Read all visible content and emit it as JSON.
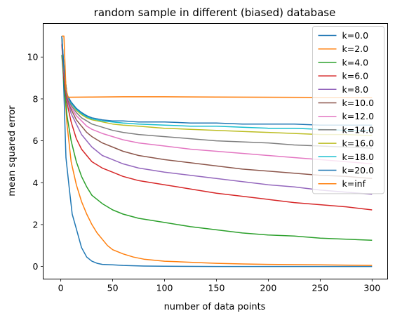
{
  "chart_data": {
    "type": "line",
    "title": "random sample in different (biased) database",
    "xlabel": "number of data points",
    "ylabel": "mean squared error",
    "xlim": [
      -17,
      315
    ],
    "ylim": [
      -0.6,
      11.6
    ],
    "xticks": [
      0,
      50,
      100,
      150,
      200,
      250,
      300
    ],
    "yticks": [
      0,
      2,
      4,
      6,
      8,
      10
    ],
    "grid": false,
    "legend_position": "top-right",
    "series": [
      {
        "name": "k=0.0",
        "color": "#1f77b4",
        "points": [
          [
            1,
            11.0
          ],
          [
            3,
            8.3
          ],
          [
            5,
            5.2
          ],
          [
            8,
            3.8
          ],
          [
            11,
            2.5
          ],
          [
            15,
            1.8
          ],
          [
            20,
            0.9
          ],
          [
            25,
            0.45
          ],
          [
            30,
            0.25
          ],
          [
            35,
            0.15
          ],
          [
            40,
            0.1
          ],
          [
            50,
            0.08
          ],
          [
            60,
            0.05
          ],
          [
            80,
            0.02
          ],
          [
            100,
            0.01
          ],
          [
            150,
            0.0
          ],
          [
            200,
            0.0
          ],
          [
            250,
            0.0
          ],
          [
            300,
            0.0
          ]
        ]
      },
      {
        "name": "k=2.0",
        "color": "#ff7f0e",
        "points": [
          [
            1,
            11.0
          ],
          [
            3,
            9.0
          ],
          [
            6,
            6.8
          ],
          [
            10,
            5.0
          ],
          [
            15,
            3.9
          ],
          [
            20,
            3.1
          ],
          [
            25,
            2.5
          ],
          [
            30,
            2.0
          ],
          [
            35,
            1.6
          ],
          [
            40,
            1.3
          ],
          [
            45,
            1.0
          ],
          [
            50,
            0.8
          ],
          [
            60,
            0.6
          ],
          [
            70,
            0.45
          ],
          [
            80,
            0.35
          ],
          [
            100,
            0.25
          ],
          [
            125,
            0.2
          ],
          [
            150,
            0.15
          ],
          [
            175,
            0.12
          ],
          [
            200,
            0.1
          ],
          [
            250,
            0.08
          ],
          [
            300,
            0.05
          ]
        ]
      },
      {
        "name": "k=4.0",
        "color": "#2ca02c",
        "points": [
          [
            1,
            10.1
          ],
          [
            3,
            8.8
          ],
          [
            6,
            7.2
          ],
          [
            10,
            6.0
          ],
          [
            15,
            5.0
          ],
          [
            20,
            4.3
          ],
          [
            25,
            3.8
          ],
          [
            30,
            3.4
          ],
          [
            40,
            3.0
          ],
          [
            50,
            2.7
          ],
          [
            60,
            2.5
          ],
          [
            75,
            2.3
          ],
          [
            100,
            2.1
          ],
          [
            125,
            1.9
          ],
          [
            150,
            1.75
          ],
          [
            175,
            1.6
          ],
          [
            200,
            1.5
          ],
          [
            225,
            1.45
          ],
          [
            250,
            1.35
          ],
          [
            275,
            1.3
          ],
          [
            300,
            1.25
          ]
        ]
      },
      {
        "name": "k=6.0",
        "color": "#d62728",
        "points": [
          [
            1,
            10.6
          ],
          [
            3,
            9.0
          ],
          [
            6,
            7.8
          ],
          [
            10,
            6.9
          ],
          [
            15,
            6.1
          ],
          [
            20,
            5.6
          ],
          [
            25,
            5.3
          ],
          [
            30,
            5.0
          ],
          [
            40,
            4.7
          ],
          [
            50,
            4.5
          ],
          [
            60,
            4.3
          ],
          [
            75,
            4.1
          ],
          [
            100,
            3.9
          ],
          [
            125,
            3.7
          ],
          [
            150,
            3.5
          ],
          [
            175,
            3.35
          ],
          [
            200,
            3.2
          ],
          [
            225,
            3.05
          ],
          [
            250,
            2.95
          ],
          [
            275,
            2.85
          ],
          [
            300,
            2.7
          ]
        ]
      },
      {
        "name": "k=8.0",
        "color": "#9467bd",
        "points": [
          [
            1,
            10.8
          ],
          [
            3,
            9.2
          ],
          [
            6,
            8.0
          ],
          [
            10,
            7.3
          ],
          [
            15,
            6.8
          ],
          [
            20,
            6.3
          ],
          [
            25,
            6.0
          ],
          [
            30,
            5.7
          ],
          [
            40,
            5.3
          ],
          [
            50,
            5.1
          ],
          [
            60,
            4.9
          ],
          [
            75,
            4.7
          ],
          [
            100,
            4.5
          ],
          [
            125,
            4.35
          ],
          [
            150,
            4.2
          ],
          [
            175,
            4.05
          ],
          [
            200,
            3.9
          ],
          [
            225,
            3.8
          ],
          [
            250,
            3.65
          ],
          [
            275,
            3.55
          ],
          [
            300,
            3.45
          ]
        ]
      },
      {
        "name": "k=10.0",
        "color": "#8c564b",
        "points": [
          [
            1,
            10.9
          ],
          [
            3,
            9.3
          ],
          [
            6,
            8.1
          ],
          [
            10,
            7.5
          ],
          [
            15,
            7.0
          ],
          [
            20,
            6.7
          ],
          [
            25,
            6.4
          ],
          [
            30,
            6.2
          ],
          [
            40,
            5.9
          ],
          [
            50,
            5.7
          ],
          [
            60,
            5.5
          ],
          [
            75,
            5.3
          ],
          [
            100,
            5.1
          ],
          [
            125,
            4.95
          ],
          [
            150,
            4.8
          ],
          [
            175,
            4.65
          ],
          [
            200,
            4.55
          ],
          [
            225,
            4.45
          ],
          [
            250,
            4.35
          ],
          [
            275,
            4.3
          ],
          [
            300,
            4.2
          ]
        ]
      },
      {
        "name": "k=12.0",
        "color": "#e377c2",
        "points": [
          [
            1,
            10.95
          ],
          [
            3,
            9.4
          ],
          [
            6,
            8.2
          ],
          [
            10,
            7.6
          ],
          [
            15,
            7.2
          ],
          [
            20,
            6.95
          ],
          [
            25,
            6.7
          ],
          [
            30,
            6.55
          ],
          [
            40,
            6.35
          ],
          [
            50,
            6.2
          ],
          [
            60,
            6.05
          ],
          [
            75,
            5.9
          ],
          [
            100,
            5.75
          ],
          [
            125,
            5.6
          ],
          [
            150,
            5.5
          ],
          [
            175,
            5.4
          ],
          [
            200,
            5.3
          ],
          [
            225,
            5.2
          ],
          [
            250,
            5.1
          ],
          [
            275,
            5.0
          ],
          [
            300,
            4.9
          ]
        ]
      },
      {
        "name": "k=14.0",
        "color": "#7f7f7f",
        "points": [
          [
            1,
            11.0
          ],
          [
            3,
            9.4
          ],
          [
            6,
            8.2
          ],
          [
            10,
            7.7
          ],
          [
            15,
            7.35
          ],
          [
            20,
            7.1
          ],
          [
            25,
            6.95
          ],
          [
            30,
            6.8
          ],
          [
            40,
            6.65
          ],
          [
            50,
            6.5
          ],
          [
            60,
            6.4
          ],
          [
            75,
            6.3
          ],
          [
            100,
            6.2
          ],
          [
            125,
            6.1
          ],
          [
            150,
            6.0
          ],
          [
            175,
            5.95
          ],
          [
            200,
            5.9
          ],
          [
            225,
            5.8
          ],
          [
            250,
            5.75
          ],
          [
            275,
            5.7
          ],
          [
            300,
            5.65
          ]
        ]
      },
      {
        "name": "k=16.0",
        "color": "#bcbd22",
        "points": [
          [
            1,
            11.0
          ],
          [
            3,
            9.5
          ],
          [
            6,
            8.2
          ],
          [
            10,
            7.8
          ],
          [
            15,
            7.45
          ],
          [
            20,
            7.25
          ],
          [
            25,
            7.1
          ],
          [
            30,
            7.0
          ],
          [
            40,
            6.9
          ],
          [
            50,
            6.8
          ],
          [
            60,
            6.75
          ],
          [
            75,
            6.7
          ],
          [
            100,
            6.6
          ],
          [
            125,
            6.55
          ],
          [
            150,
            6.5
          ],
          [
            175,
            6.45
          ],
          [
            200,
            6.4
          ],
          [
            225,
            6.35
          ],
          [
            250,
            6.3
          ],
          [
            275,
            6.3
          ],
          [
            300,
            6.25
          ]
        ]
      },
      {
        "name": "k=18.0",
        "color": "#17becf",
        "points": [
          [
            1,
            11.0
          ],
          [
            3,
            9.5
          ],
          [
            6,
            8.2
          ],
          [
            10,
            7.8
          ],
          [
            15,
            7.5
          ],
          [
            20,
            7.3
          ],
          [
            25,
            7.15
          ],
          [
            30,
            7.05
          ],
          [
            40,
            6.95
          ],
          [
            50,
            6.9
          ],
          [
            60,
            6.85
          ],
          [
            75,
            6.8
          ],
          [
            100,
            6.75
          ],
          [
            125,
            6.7
          ],
          [
            150,
            6.7
          ],
          [
            175,
            6.65
          ],
          [
            200,
            6.6
          ],
          [
            225,
            6.6
          ],
          [
            250,
            6.55
          ],
          [
            275,
            6.5
          ],
          [
            300,
            6.5
          ]
        ]
      },
      {
        "name": "k=20.0",
        "color": "#1f77b4",
        "points": [
          [
            1,
            11.0
          ],
          [
            3,
            9.5
          ],
          [
            6,
            8.2
          ],
          [
            10,
            7.85
          ],
          [
            15,
            7.55
          ],
          [
            20,
            7.35
          ],
          [
            25,
            7.2
          ],
          [
            30,
            7.1
          ],
          [
            40,
            7.0
          ],
          [
            50,
            6.95
          ],
          [
            60,
            6.95
          ],
          [
            75,
            6.9
          ],
          [
            100,
            6.9
          ],
          [
            125,
            6.85
          ],
          [
            150,
            6.85
          ],
          [
            175,
            6.8
          ],
          [
            200,
            6.8
          ],
          [
            225,
            6.8
          ],
          [
            250,
            6.75
          ],
          [
            275,
            6.75
          ],
          [
            300,
            6.75
          ]
        ]
      },
      {
        "name": "k=inf",
        "color": "#ff7f0e",
        "points": [
          [
            1,
            11.0
          ],
          [
            3,
            11.0
          ],
          [
            5,
            8.5
          ],
          [
            7,
            8.08
          ],
          [
            30,
            8.09
          ],
          [
            60,
            8.1
          ],
          [
            100,
            8.1
          ],
          [
            150,
            8.09
          ],
          [
            200,
            8.08
          ],
          [
            250,
            8.07
          ],
          [
            300,
            8.07
          ]
        ]
      }
    ]
  }
}
